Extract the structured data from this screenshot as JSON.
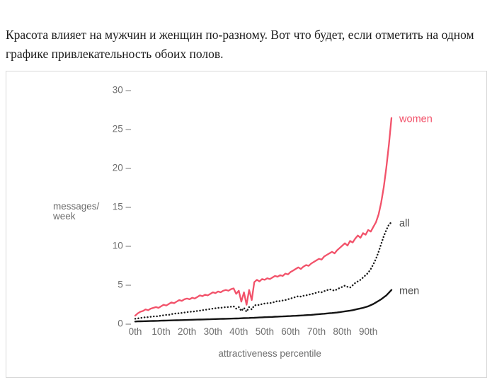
{
  "intro": {
    "text": "Красота влияет на мужчин и женщин по-разному. Вот что будет, если отметить на одном графике привлекательность обоих полов."
  },
  "chart": {
    "y_axis": {
      "label_line1": "messages/",
      "label_line2": "week",
      "ticks": [
        0,
        5,
        10,
        15,
        20,
        25,
        30
      ],
      "tick_dash": "–",
      "tick_color": "#6e6e6e"
    },
    "x_axis": {
      "label": "attractiveness percentile",
      "ticks": [
        "0th",
        "10th",
        "20th",
        "30th",
        "40th",
        "50th",
        "60th",
        "70th",
        "80th",
        "90th"
      ],
      "tick_color": "#6e6e6e"
    },
    "label_color_neutral": "#4a4a4a"
  },
  "chart_data": {
    "type": "line",
    "title": "",
    "xlabel": "attractiveness percentile",
    "ylabel": "messages/week",
    "x_unit": "attractiveness percentile (0th–99th)",
    "x_range": [
      0,
      99
    ],
    "ylim": [
      0,
      30
    ],
    "grid": false,
    "legend_position": "inline-right-of-line-ends",
    "series": [
      {
        "name": "women",
        "color": "#f2526a",
        "style": "solid",
        "values": [
          1.0,
          1.3,
          1.5,
          1.6,
          1.8,
          1.7,
          1.9,
          2.0,
          2.1,
          2.0,
          2.2,
          2.4,
          2.3,
          2.5,
          2.7,
          2.6,
          2.8,
          3.0,
          2.9,
          3.1,
          3.2,
          3.1,
          3.3,
          3.2,
          3.4,
          3.6,
          3.5,
          3.7,
          3.6,
          3.8,
          4.0,
          3.9,
          4.1,
          4.0,
          4.2,
          4.3,
          4.2,
          4.4,
          4.5,
          3.8,
          4.2,
          2.8,
          4.0,
          2.4,
          4.3,
          3.0,
          5.3,
          5.6,
          5.4,
          5.7,
          5.6,
          5.8,
          5.7,
          5.9,
          6.1,
          6.0,
          6.2,
          6.1,
          6.4,
          6.3,
          6.6,
          6.8,
          7.0,
          7.2,
          7.0,
          7.3,
          7.5,
          7.4,
          7.7,
          7.9,
          8.1,
          8.3,
          8.2,
          8.6,
          8.8,
          9.0,
          9.2,
          9.0,
          9.4,
          9.7,
          10.0,
          10.3,
          10.0,
          10.6,
          10.4,
          10.9,
          11.3,
          11.0,
          11.6,
          11.4,
          12.0,
          11.8,
          12.4,
          13.0,
          14.0,
          15.5,
          17.5,
          20.0,
          23.0,
          26.4
        ]
      },
      {
        "name": "all",
        "color": "#1c1c1c",
        "style": "dotted",
        "values": [
          0.6,
          0.65,
          0.7,
          0.75,
          0.8,
          0.8,
          0.85,
          0.9,
          0.9,
          0.95,
          1.0,
          1.05,
          1.1,
          1.1,
          1.2,
          1.25,
          1.3,
          1.3,
          1.35,
          1.4,
          1.45,
          1.5,
          1.5,
          1.55,
          1.6,
          1.65,
          1.7,
          1.75,
          1.8,
          1.85,
          1.9,
          1.95,
          2.0,
          2.0,
          2.05,
          2.1,
          2.1,
          2.15,
          2.2,
          1.9,
          2.1,
          1.6,
          2.0,
          1.5,
          2.1,
          1.8,
          2.3,
          2.4,
          2.35,
          2.5,
          2.55,
          2.6,
          2.6,
          2.7,
          2.75,
          2.9,
          2.85,
          2.95,
          3.0,
          3.1,
          3.2,
          3.3,
          3.4,
          3.5,
          3.45,
          3.55,
          3.6,
          3.7,
          3.75,
          3.85,
          3.95,
          4.05,
          4.0,
          4.15,
          4.25,
          4.4,
          4.3,
          4.2,
          4.4,
          4.55,
          4.7,
          4.85,
          4.7,
          4.6,
          4.9,
          5.2,
          5.4,
          5.6,
          5.9,
          6.2,
          6.5,
          7.0,
          7.6,
          8.3,
          9.2,
          10.2,
          11.2,
          12.0,
          12.7,
          13.0
        ]
      },
      {
        "name": "men",
        "color": "#141414",
        "style": "solid",
        "values": [
          0.25,
          0.26,
          0.27,
          0.28,
          0.29,
          0.3,
          0.31,
          0.32,
          0.33,
          0.34,
          0.35,
          0.36,
          0.37,
          0.38,
          0.39,
          0.4,
          0.41,
          0.42,
          0.43,
          0.44,
          0.45,
          0.46,
          0.47,
          0.48,
          0.49,
          0.5,
          0.51,
          0.52,
          0.53,
          0.54,
          0.55,
          0.56,
          0.57,
          0.58,
          0.59,
          0.6,
          0.61,
          0.62,
          0.63,
          0.64,
          0.65,
          0.66,
          0.68,
          0.69,
          0.7,
          0.72,
          0.73,
          0.75,
          0.76,
          0.78,
          0.8,
          0.81,
          0.83,
          0.84,
          0.86,
          0.87,
          0.89,
          0.9,
          0.92,
          0.94,
          0.95,
          0.97,
          0.98,
          1.0,
          1.02,
          1.04,
          1.06,
          1.08,
          1.1,
          1.13,
          1.16,
          1.19,
          1.22,
          1.25,
          1.28,
          1.31,
          1.34,
          1.37,
          1.4,
          1.45,
          1.5,
          1.55,
          1.6,
          1.65,
          1.7,
          1.78,
          1.85,
          1.93,
          2.0,
          2.1,
          2.2,
          2.35,
          2.5,
          2.7,
          2.9,
          3.1,
          3.35,
          3.6,
          3.95,
          4.3
        ]
      }
    ]
  }
}
